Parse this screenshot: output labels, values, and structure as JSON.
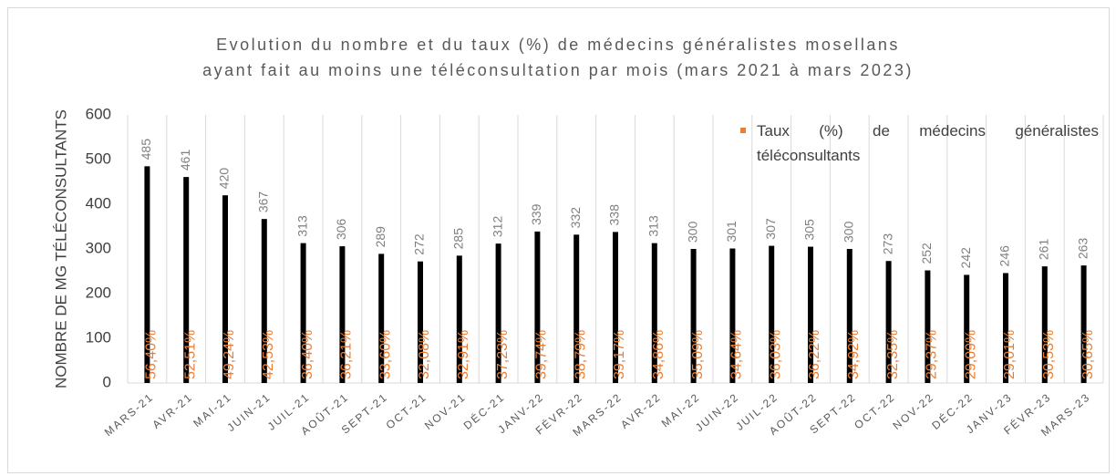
{
  "chart_data": {
    "type": "bar",
    "title": [
      "Evolution du nombre et du taux (%) de médecins généralistes mosellans",
      "ayant fait au moins une téléconsultation par mois (mars 2021 à mars 2023)"
    ],
    "y_label": "NOMBRE DE MG TÉLÉCONSULTANTS",
    "categories": [
      "MARS-21",
      "AVR-21",
      "MAI-21",
      "JUIN-21",
      "JUIL-21",
      "AOÛT-21",
      "SEPT-21",
      "OCT-21",
      "NOV-21",
      "DÉC-21",
      "JANV-22",
      "FÉVR-22",
      "MARS-22",
      "AVR-22",
      "MAI-22",
      "JUIN-22",
      "JUIL-22",
      "AOÛT-22",
      "SEPT-22",
      "OCT-22",
      "NOV-22",
      "DÉC-22",
      "JANV-23",
      "FÉVR-23",
      "MARS-23"
    ],
    "values": [
      485,
      461,
      420,
      367,
      313,
      306,
      289,
      272,
      285,
      312,
      339,
      332,
      338,
      313,
      300,
      301,
      307,
      305,
      300,
      273,
      252,
      242,
      246,
      261,
      263
    ],
    "color": "#000000",
    "series": [
      {
        "name": "Taux (%) de médecins généralistes téléconsultants",
        "color": "#ed7d31",
        "values": [
          56.4,
          52.51,
          49.24,
          42.53,
          36.4,
          36.21,
          33.6,
          32.08,
          32.91,
          37.23,
          39.74,
          38.79,
          39.17,
          34.86,
          35.09,
          34.64,
          36.03,
          36.22,
          34.92,
          32.35,
          29.37,
          29.09,
          29.01,
          30.53,
          30.65
        ],
        "value_labels": [
          "56,40%",
          "52,51%",
          "49,24%",
          "42,53%",
          "36,40%",
          "36,21%",
          "33,60%",
          "32,08%",
          "32,91%",
          "37,23%",
          "39,74%",
          "38,79%",
          "39,17%",
          "34,86%",
          "35,09%",
          "34,64%",
          "36,03%",
          "36,22%",
          "34,92%",
          "32,35%",
          "29,37%",
          "29,09%",
          "29,01%",
          "30,53%",
          "30,65%"
        ]
      }
    ],
    "ylim": [
      0,
      600
    ],
    "yticks": [
      0,
      100,
      200,
      300,
      400,
      500,
      600
    ],
    "grid": false,
    "legend": "top-right"
  }
}
